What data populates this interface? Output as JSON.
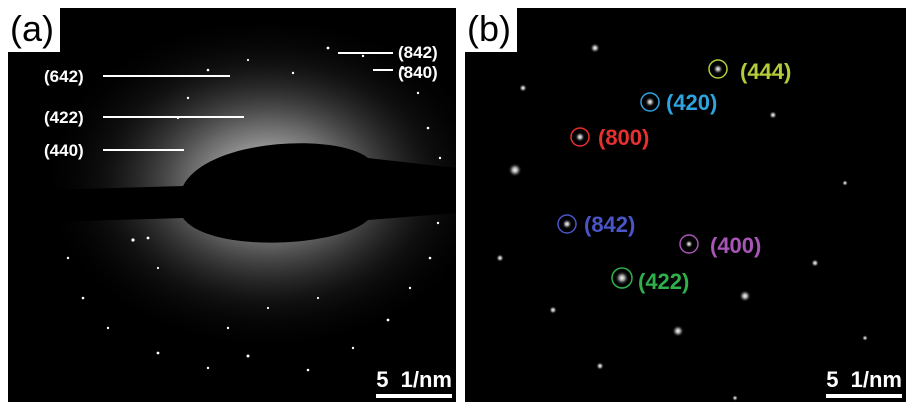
{
  "panel_a": {
    "label": "(a)",
    "scale_bar": "5  1/nm",
    "rings": [
      {
        "name": "(842)"
      },
      {
        "name": "(840)"
      },
      {
        "name": "(642)"
      },
      {
        "name": "(422)"
      },
      {
        "name": "(440)"
      }
    ]
  },
  "panel_b": {
    "label": "(b)",
    "scale_bar": "5  1/nm",
    "spots": [
      {
        "name": "(444)",
        "color": "#b5cc3a"
      },
      {
        "name": "(420)",
        "color": "#2fa3e0"
      },
      {
        "name": "(800)",
        "color": "#e8302e"
      },
      {
        "name": "(842)",
        "color": "#4a55c8"
      },
      {
        "name": "(400)",
        "color": "#a855b8"
      },
      {
        "name": "(422)",
        "color": "#2fb04a"
      }
    ]
  }
}
